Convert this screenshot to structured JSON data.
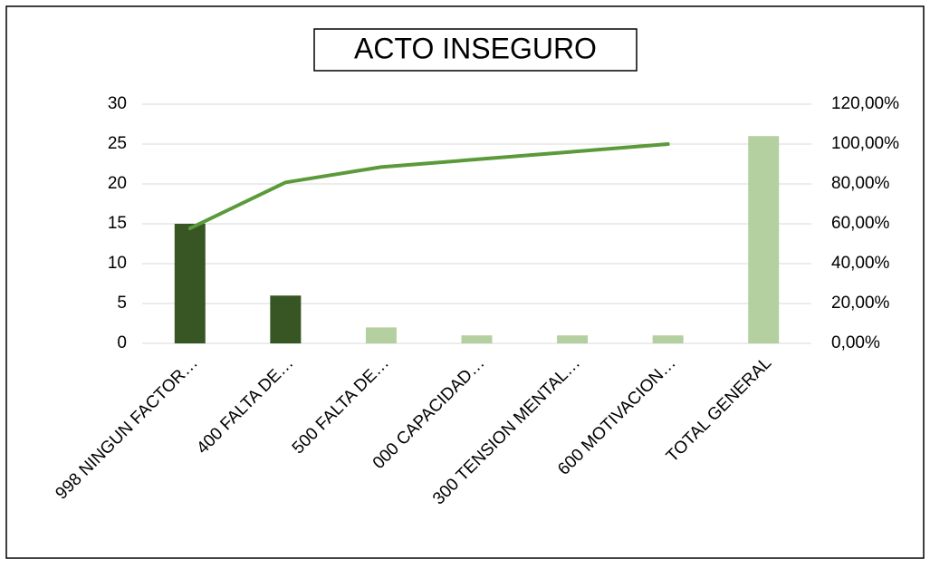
{
  "chart_data": {
    "type": "bar",
    "title": "ACTO INSEGURO",
    "categories": [
      "998 NINGUN FACTOR…",
      "400 FALTA DE…",
      "500 FALTA DE…",
      "000 CAPACIDAD…",
      "300 TENSION MENTAL…",
      "600 MOTIVACION…",
      "TOTAL GENERAL"
    ],
    "series": [
      {
        "type": "bar",
        "values": [
          15,
          6,
          2,
          1,
          1,
          1,
          26
        ],
        "colors": [
          "#375623",
          "#375623",
          "#b4cfa0",
          "#b4cfa0",
          "#b4cfa0",
          "#b4cfa0",
          "#b4cfa0"
        ]
      },
      {
        "type": "line",
        "axis": "y2",
        "color": "#5b9a3a",
        "values": [
          57.69,
          80.77,
          88.46,
          92.31,
          96.15,
          100,
          null
        ]
      }
    ],
    "ylim": [
      0,
      30
    ],
    "yticks": [
      0,
      5,
      10,
      15,
      20,
      25,
      30
    ],
    "y2lim": [
      0,
      120
    ],
    "y2ticks": [
      {
        "value": 0,
        "label": "0,00%"
      },
      {
        "value": 20,
        "label": "20,00%"
      },
      {
        "value": 40,
        "label": "40,00%"
      },
      {
        "value": 60,
        "label": "60,00%"
      },
      {
        "value": 80,
        "label": "80,00%"
      },
      {
        "value": 100,
        "label": "100,00%"
      },
      {
        "value": 120,
        "label": "120,00%"
      }
    ],
    "grid": true
  }
}
